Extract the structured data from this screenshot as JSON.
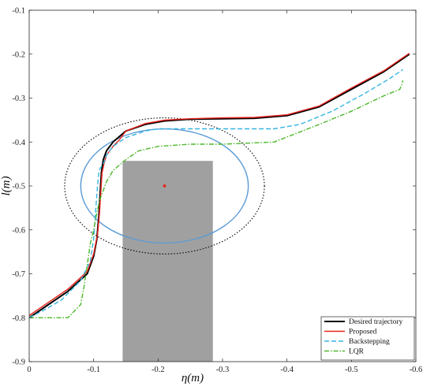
{
  "chart_data": {
    "type": "line",
    "xlabel": "η(m)",
    "ylabel": "l(m)",
    "xlim": [
      0,
      -0.6
    ],
    "ylim": [
      -0.9,
      -0.1
    ],
    "x_ticks": [
      0,
      -0.1,
      -0.2,
      -0.3,
      -0.4,
      -0.5,
      -0.6
    ],
    "x_tick_labels": [
      "0",
      "-0.1",
      "-0.2",
      "-0.3",
      "-0.4",
      "-0.5",
      "-0.6"
    ],
    "y_ticks": [
      -0.9,
      -0.8,
      -0.7,
      -0.6,
      -0.5,
      -0.4,
      -0.3,
      -0.2,
      -0.1
    ],
    "y_tick_labels": [
      "-0.9",
      "-0.8",
      "-0.7",
      "-0.6",
      "-0.5",
      "-0.4",
      "-0.3",
      "-0.2",
      "-0.1"
    ],
    "grid": false,
    "legend_position": "bottom-right",
    "series": [
      {
        "name": "Desired trajectory",
        "color": "#000000",
        "style": "solid",
        "x": [
          0.0,
          -0.03,
          -0.06,
          -0.09,
          -0.1,
          -0.105,
          -0.108,
          -0.11,
          -0.112,
          -0.115,
          -0.12,
          -0.13,
          -0.15,
          -0.18,
          -0.21,
          -0.25,
          -0.3,
          -0.35,
          -0.4,
          -0.45,
          -0.5,
          -0.55,
          -0.59
        ],
        "y": [
          -0.8,
          -0.77,
          -0.74,
          -0.7,
          -0.66,
          -0.62,
          -0.57,
          -0.52,
          -0.47,
          -0.44,
          -0.42,
          -0.4,
          -0.375,
          -0.36,
          -0.352,
          -0.348,
          -0.347,
          -0.346,
          -0.34,
          -0.32,
          -0.28,
          -0.24,
          -0.2
        ]
      },
      {
        "name": "Proposed",
        "color": "#e8231d",
        "style": "solid",
        "x": [
          0.0,
          -0.03,
          -0.06,
          -0.09,
          -0.1,
          -0.106,
          -0.109,
          -0.111,
          -0.113,
          -0.116,
          -0.12,
          -0.125,
          -0.13,
          -0.14,
          -0.15,
          -0.18,
          -0.21,
          -0.25,
          -0.3,
          -0.35,
          -0.4,
          -0.45,
          -0.5,
          -0.55,
          -0.59
        ],
        "y": [
          -0.795,
          -0.765,
          -0.735,
          -0.695,
          -0.655,
          -0.61,
          -0.565,
          -0.515,
          -0.47,
          -0.45,
          -0.43,
          -0.42,
          -0.41,
          -0.395,
          -0.375,
          -0.358,
          -0.35,
          -0.347,
          -0.345,
          -0.344,
          -0.338,
          -0.318,
          -0.277,
          -0.238,
          -0.198
        ]
      },
      {
        "name": "Backstepping",
        "color": "#35b4e0",
        "style": "dashed",
        "x": [
          0.0,
          -0.02,
          -0.05,
          -0.08,
          -0.095,
          -0.1,
          -0.102,
          -0.104,
          -0.106,
          -0.108,
          -0.11,
          -0.115,
          -0.12,
          -0.13,
          -0.15,
          -0.18,
          -0.2,
          -0.3,
          -0.38,
          -0.42,
          -0.47,
          -0.52,
          -0.56,
          -0.58
        ],
        "y": [
          -0.8,
          -0.785,
          -0.76,
          -0.715,
          -0.67,
          -0.62,
          -0.58,
          -0.54,
          -0.5,
          -0.47,
          -0.46,
          -0.45,
          -0.43,
          -0.41,
          -0.39,
          -0.375,
          -0.37,
          -0.37,
          -0.37,
          -0.36,
          -0.33,
          -0.29,
          -0.255,
          -0.235
        ]
      },
      {
        "name": "LQR",
        "color": "#4cb82a",
        "style": "dashdot",
        "x": [
          0.0,
          -0.06,
          -0.08,
          -0.085,
          -0.09,
          -0.095,
          -0.1,
          -0.105,
          -0.11,
          -0.115,
          -0.12,
          -0.13,
          -0.15,
          -0.17,
          -0.2,
          -0.25,
          -0.3,
          -0.38,
          -0.45,
          -0.5,
          -0.55,
          -0.575,
          -0.578,
          -0.58
        ],
        "y": [
          -0.8,
          -0.8,
          -0.77,
          -0.73,
          -0.68,
          -0.63,
          -0.6,
          -0.56,
          -0.53,
          -0.51,
          -0.49,
          -0.465,
          -0.44,
          -0.42,
          -0.41,
          -0.405,
          -0.405,
          -0.4,
          -0.36,
          -0.33,
          -0.295,
          -0.28,
          -0.27,
          -0.26
        ]
      }
    ],
    "obstacle": {
      "rect_x": [
        -0.145,
        -0.285
      ],
      "rect_y": [
        -0.9,
        -0.443
      ],
      "rect_color": "#a0a0a0",
      "center": [
        -0.21,
        -0.5
      ],
      "center_color": "#e8231d",
      "inner_circle_radius": 0.13,
      "inner_circle_color": "#5b9bd5",
      "outer_circle_radius": 0.155,
      "outer_circle_color": "#000000"
    }
  }
}
